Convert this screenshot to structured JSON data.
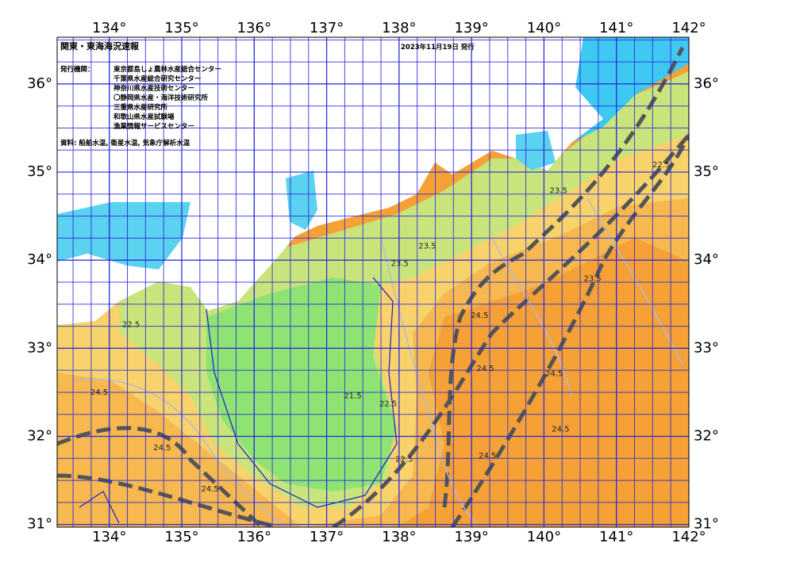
{
  "header": {
    "title": "関東・東海海況速報",
    "date": "2023年11月19日 発行"
  },
  "credits": {
    "label": "発行機関：",
    "orgs": [
      "東京都島しょ農林水産総合センター",
      "千葉県水産総合研究センター",
      "神奈川県水産技術センター",
      "〇静岡県水産・海洋技術研究所",
      "三重県水産研究所",
      "和歌山県水産試験場",
      "漁業情報サービスセンター"
    ]
  },
  "source": "資料: 船舶水温, 衛星水温, 気象庁解析水温",
  "map": {
    "xlim": [
      133.28,
      142
    ],
    "ylim": [
      30.97,
      36.53
    ],
    "xticks": [
      {
        "value": 134,
        "label": "134°"
      },
      {
        "value": 135,
        "label": "135°"
      },
      {
        "value": 136,
        "label": "136°"
      },
      {
        "value": 137,
        "label": "137°"
      },
      {
        "value": 138,
        "label": "138°"
      },
      {
        "value": 139,
        "label": "139°"
      },
      {
        "value": 140,
        "label": "140°"
      },
      {
        "value": 141,
        "label": "141°"
      },
      {
        "value": 142,
        "label": "142°"
      }
    ],
    "yticks": [
      {
        "value": 31,
        "label": "31°"
      },
      {
        "value": 32,
        "label": "32°"
      },
      {
        "value": 33,
        "label": "33°"
      },
      {
        "value": 34,
        "label": "34°"
      },
      {
        "value": 35,
        "label": "35°"
      },
      {
        "value": 36,
        "label": "36°"
      }
    ],
    "contour_labels": [
      {
        "text": "22.5",
        "lon": 134.3,
        "lat": 33.27
      },
      {
        "text": "24.5",
        "lon": 133.86,
        "lat": 32.5
      },
      {
        "text": "24.5",
        "lon": 134.73,
        "lat": 31.87
      },
      {
        "text": "24.5",
        "lon": 135.39,
        "lat": 31.4
      },
      {
        "text": "21.5",
        "lon": 137.36,
        "lat": 32.46
      },
      {
        "text": "22.5",
        "lon": 137.85,
        "lat": 32.37
      },
      {
        "text": "22.5",
        "lon": 138.07,
        "lat": 31.74
      },
      {
        "text": "23.5",
        "lon": 138.01,
        "lat": 33.96
      },
      {
        "text": "23.5",
        "lon": 138.39,
        "lat": 34.16
      },
      {
        "text": "24.5",
        "lon": 139.11,
        "lat": 33.37
      },
      {
        "text": "24.5",
        "lon": 139.19,
        "lat": 32.77
      },
      {
        "text": "24.5",
        "lon": 140.14,
        "lat": 32.71
      },
      {
        "text": "24.5",
        "lon": 140.23,
        "lat": 32.08
      },
      {
        "text": "23.5",
        "lon": 140.67,
        "lat": 33.79
      },
      {
        "text": "23.5",
        "lon": 140.2,
        "lat": 34.79
      },
      {
        "text": "22.5",
        "lon": 141.62,
        "lat": 35.08
      },
      {
        "text": "24.5",
        "lon": 139.22,
        "lat": 31.78
      }
    ]
  }
}
